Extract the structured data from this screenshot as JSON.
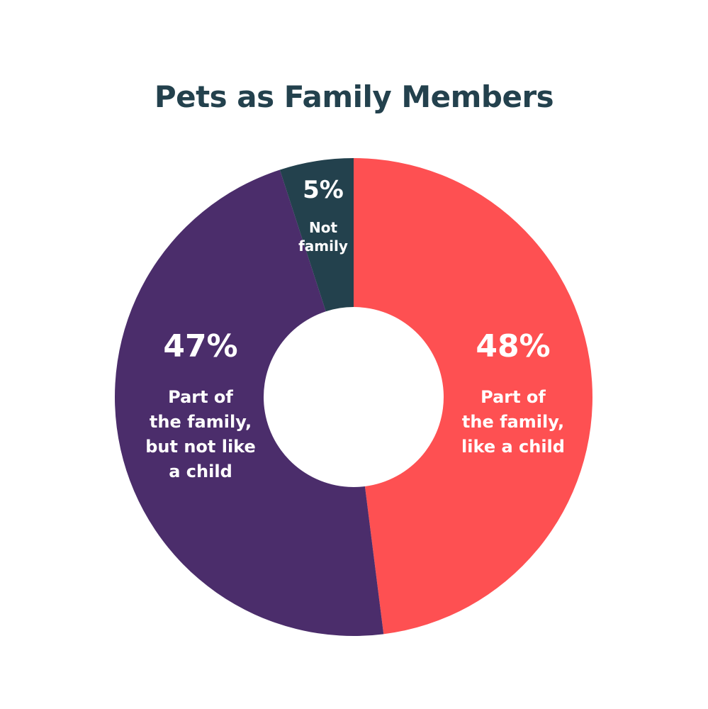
{
  "chart_data": {
    "type": "pie",
    "title": "Pets as Family Members",
    "slices": [
      {
        "value": 48,
        "pct_text": "48%",
        "label_lines": [
          "Part of",
          "the family,",
          "like a child"
        ],
        "color": "#fe5052"
      },
      {
        "value": 47,
        "pct_text": "47%",
        "label_lines": [
          "Part of",
          "the family,",
          "but not like",
          "a child"
        ],
        "color": "#4b2d6b"
      },
      {
        "value": 5,
        "pct_text": "5%",
        "label_lines": [
          "Not",
          "family"
        ],
        "color": "#23414d"
      }
    ]
  }
}
